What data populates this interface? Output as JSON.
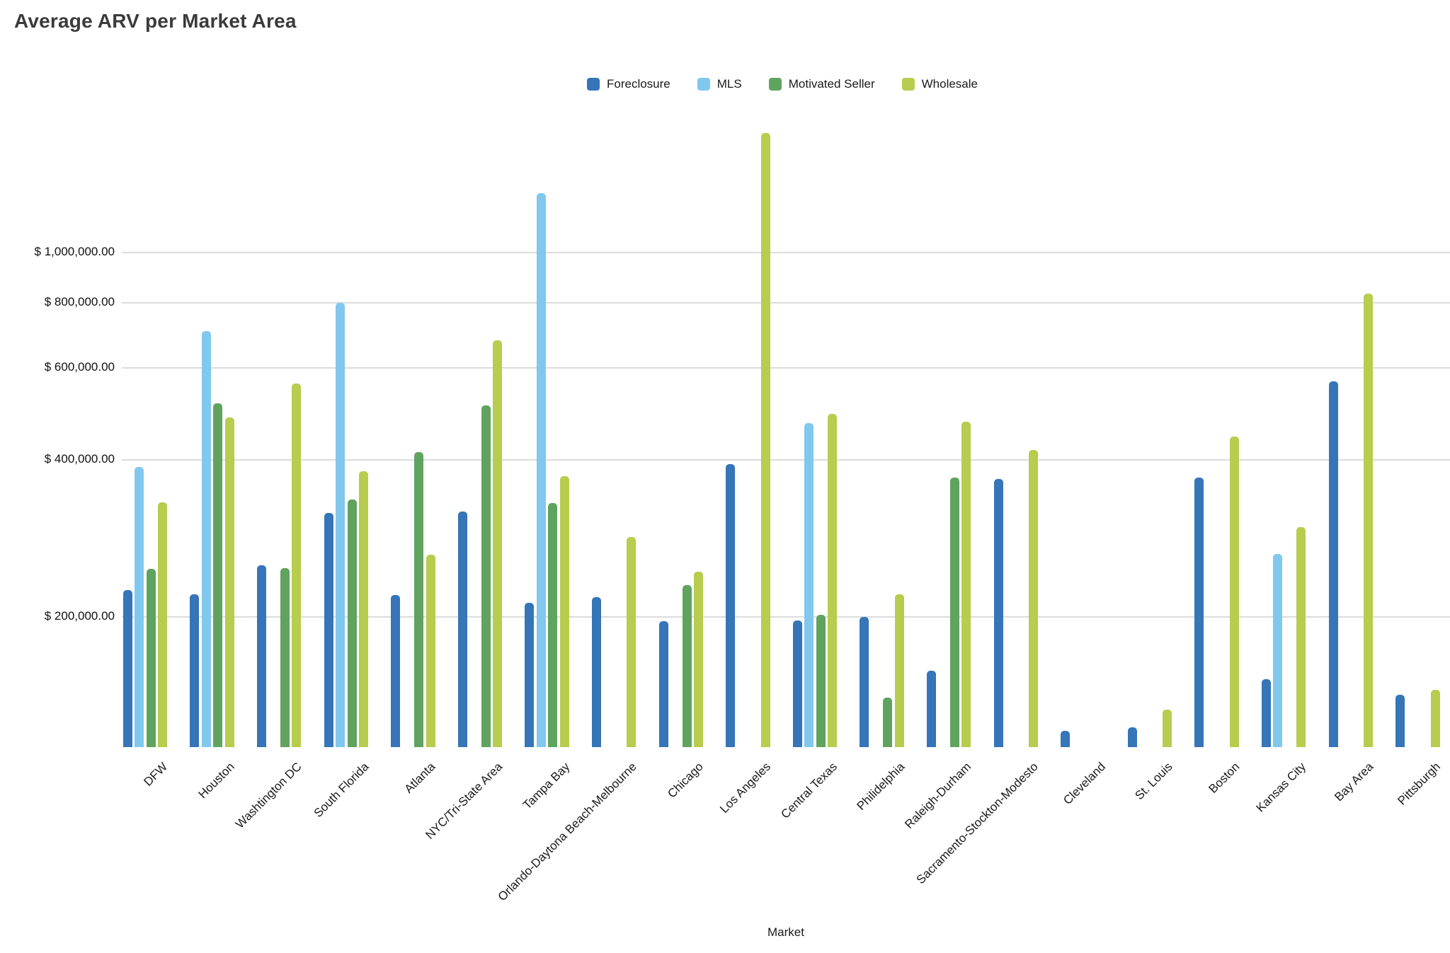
{
  "page": {
    "title": "Average ARV per Market Area"
  },
  "chart_data": {
    "type": "bar",
    "title": "Average ARV per Market Area",
    "xlabel": "Market",
    "ylabel": "",
    "grid": true,
    "legend_position": "top-center",
    "y_axis": {
      "scale": "log",
      "ylim": [
        113000,
        1970000
      ],
      "ticks": [
        {
          "label": "$ 1,000,000.00",
          "value": 1000000
        },
        {
          "label": "$ 800,000.00",
          "value": 800000
        },
        {
          "label": "$ 600,000.00",
          "value": 600000
        },
        {
          "label": "$ 400,000.00",
          "value": 400000
        },
        {
          "label": "$ 200,000.00",
          "value": 200000
        }
      ]
    },
    "categories": [
      "DFW",
      "Houston",
      "Washtington DC",
      "South Florida",
      "Atlanta",
      "NYC/Tri-State Area",
      "Tampa Bay",
      "Orlando-Daytona Beach-Melbourne",
      "Chicago",
      "Los Angeles",
      "Central Texas",
      "Philidelphia",
      "Raleigh-Durham",
      "Sacramento-Stockton-Modesto",
      "Cleveland",
      "St. Louis",
      "Boston",
      "Kansas City",
      "Bay Area",
      "Pittsburgh"
    ],
    "series": [
      {
        "name": "Foreclosure",
        "color": "#3575b8",
        "values": [
          225000,
          221000,
          251000,
          316000,
          220000,
          318000,
          213000,
          218000,
          196000,
          393000,
          197000,
          200000,
          158000,
          368000,
          121000,
          123000,
          370000,
          152000,
          566000,
          142000
        ]
      },
      {
        "name": "MLS",
        "color": "#81c8ee",
        "values": [
          388000,
          706000,
          null,
          800000,
          null,
          null,
          1297000,
          null,
          null,
          null,
          470000,
          null,
          null,
          null,
          null,
          null,
          null,
          264000,
          null,
          null
        ]
      },
      {
        "name": "Motivated Seller",
        "color": "#60a35e",
        "values": [
          247000,
          514000,
          248000,
          336000,
          414000,
          508000,
          331000,
          null,
          230000,
          null,
          202000,
          140000,
          370000,
          null,
          null,
          null,
          null,
          null,
          null,
          null
        ]
      },
      {
        "name": "Wholesale",
        "color": "#b8cc4d",
        "values": [
          332000,
          482000,
          561000,
          380000,
          263000,
          677000,
          372000,
          285000,
          244000,
          1693000,
          490000,
          221000,
          474000,
          418000,
          null,
          133000,
          444000,
          297000,
          833000,
          145000
        ]
      }
    ]
  }
}
